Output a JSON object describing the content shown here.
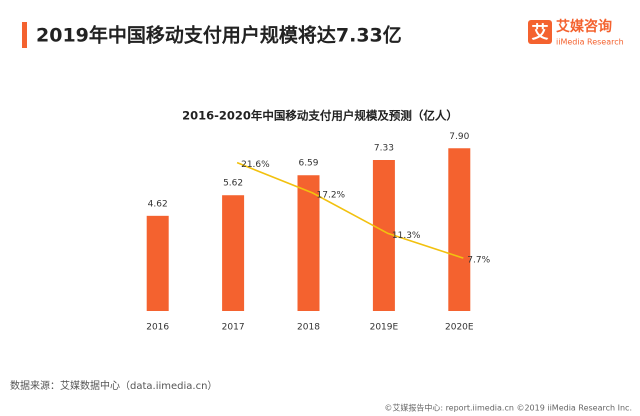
{
  "header": {
    "title": "2019年中国移动支付用户规模将达7.33亿",
    "logo_mark": "艾",
    "logo_name": "艾媒咨询",
    "logo_sub": "iiMedia Research"
  },
  "chart_data": {
    "type": "bar-line",
    "title": "2016-2020年中国移动支付用户规模及预测（亿人）",
    "categories": [
      "2016",
      "2017",
      "2018",
      "2019E",
      "2020E"
    ],
    "series": [
      {
        "type": "bar",
        "color": "#f4622f",
        "values": [
          4.62,
          5.62,
          6.59,
          7.33,
          7.9
        ],
        "value_labels": [
          "4.62",
          "5.62",
          "6.59",
          "7.33",
          "7.90"
        ]
      },
      {
        "type": "line",
        "axis": "y2",
        "color": "#f2c10f",
        "values": [
          null,
          21.6,
          17.2,
          11.3,
          7.7
        ],
        "value_labels": [
          null,
          "21.6%",
          "17.2%",
          "11.3%",
          "7.7%"
        ]
      }
    ],
    "ylim": [
      0,
      10
    ],
    "y2lim": [
      0,
      30
    ]
  },
  "source": "数据来源：艾媒数据中心（data.iimedia.cn）",
  "footer": "©艾媒报告中心: report.iimedia.cn ©2019  iiMedia Research  Inc."
}
